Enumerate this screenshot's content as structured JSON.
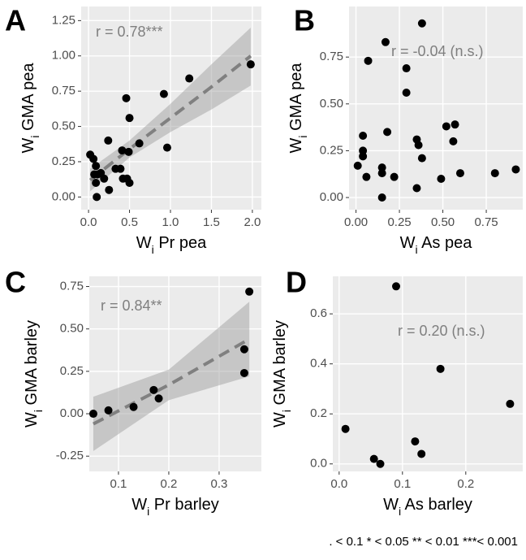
{
  "chart_data": [
    {
      "type": "scatter",
      "letter": "A",
      "annotation": "r = 0.78***",
      "color": "#000000",
      "grid": true,
      "x_label": {
        "base": "W",
        "sub": "i",
        "text": " Pr pea"
      },
      "y_label": {
        "base": "W",
        "sub": "i",
        "text": " GMA pea"
      },
      "x": [
        0.02,
        0.06,
        0.09,
        0.07,
        0.11,
        0.09,
        0.1,
        0.15,
        0.19,
        0.24,
        0.25,
        0.33,
        0.39,
        0.41,
        0.46,
        0.49,
        0.5,
        0.47,
        0.5,
        0.42,
        0.62,
        0.92,
        0.96,
        1.23,
        1.98
      ],
      "y": [
        0.3,
        0.27,
        0.22,
        0.16,
        0.16,
        0.1,
        0.0,
        0.17,
        0.13,
        0.4,
        0.05,
        0.2,
        0.2,
        0.33,
        0.7,
        0.32,
        0.56,
        0.13,
        0.1,
        0.13,
        0.38,
        0.73,
        0.35,
        0.84,
        0.94
      ],
      "fit": {
        "x": [
          0.02,
          0.5,
          1.0,
          1.5,
          1.98
        ],
        "y": [
          0.12,
          0.34,
          0.56,
          0.78,
          1.0
        ],
        "lower": [
          0.04,
          0.28,
          0.46,
          0.62,
          0.79
        ],
        "upper": [
          0.2,
          0.4,
          0.66,
          0.94,
          1.2
        ]
      },
      "xlim": [
        -0.09,
        2.11
      ],
      "ylim": [
        -0.09,
        1.35
      ],
      "xticks": [
        {
          "value": 0,
          "label": "0.0"
        },
        {
          "value": 0.5,
          "label": "0.5"
        },
        {
          "value": 1,
          "label": "1.0"
        },
        {
          "value": 1.5,
          "label": "1.5"
        },
        {
          "value": 2,
          "label": "2.0"
        }
      ],
      "yticks": [
        {
          "value": 0,
          "label": "0.00"
        },
        {
          "value": 0.25,
          "label": "0.25"
        },
        {
          "value": 0.5,
          "label": "0.50"
        },
        {
          "value": 0.75,
          "label": "0.75"
        },
        {
          "value": 1,
          "label": "1.00"
        },
        {
          "value": 1.25,
          "label": "1.25"
        }
      ]
    },
    {
      "type": "scatter",
      "letter": "B",
      "annotation": "r = -0.04 (n.s.)",
      "color": "#000000",
      "grid": true,
      "x_label": {
        "base": "W",
        "sub": "i",
        "text": " As pea"
      },
      "y_label": {
        "base": "W",
        "sub": "i",
        "text": " GMA pea"
      },
      "x": [
        0.38,
        0.17,
        0.07,
        0.29,
        0.29,
        0.52,
        0.57,
        0.56,
        0.18,
        0.04,
        0.35,
        0.36,
        0.38,
        0.04,
        0.04,
        0.01,
        0.15,
        0.15,
        0.22,
        0.06,
        0.49,
        0.6,
        0.8,
        0.92,
        0.15,
        0.35
      ],
      "y": [
        0.93,
        0.83,
        0.73,
        0.69,
        0.56,
        0.38,
        0.39,
        0.3,
        0.35,
        0.33,
        0.31,
        0.28,
        0.21,
        0.25,
        0.22,
        0.17,
        0.16,
        0.13,
        0.11,
        0.11,
        0.1,
        0.13,
        0.13,
        0.15,
        0.0,
        0.05
      ],
      "xlim": [
        -0.04,
        0.96
      ],
      "ylim": [
        -0.065,
        1.02
      ],
      "xticks": [
        {
          "value": 0,
          "label": "0.00"
        },
        {
          "value": 0.25,
          "label": "0.25"
        },
        {
          "value": 0.5,
          "label": "0.50"
        },
        {
          "value": 0.75,
          "label": "0.75"
        }
      ],
      "yticks": [
        {
          "value": 0,
          "label": "0.00"
        },
        {
          "value": 0.25,
          "label": "0.25"
        },
        {
          "value": 0.5,
          "label": "0.50"
        },
        {
          "value": 0.75,
          "label": "0.75"
        }
      ]
    },
    {
      "type": "scatter",
      "letter": "C",
      "annotation": "r = 0.84**",
      "color": "#000000",
      "grid": true,
      "x_label": {
        "base": "W",
        "sub": "i",
        "text": " Pr barley"
      },
      "y_label": {
        "base": "W",
        "sub": "i",
        "text": " GMA barley"
      },
      "x": [
        0.05,
        0.08,
        0.13,
        0.17,
        0.18,
        0.35,
        0.35,
        0.36
      ],
      "y": [
        0.0,
        0.02,
        0.04,
        0.14,
        0.09,
        0.38,
        0.24,
        0.72
      ],
      "fit": {
        "x": [
          0.05,
          0.2,
          0.36
        ],
        "y": [
          -0.06,
          0.17,
          0.44
        ],
        "lower": [
          -0.22,
          0.08,
          0.22
        ],
        "upper": [
          0.1,
          0.26,
          0.66
        ]
      },
      "xlim": [
        0.042,
        0.384
      ],
      "ylim": [
        -0.34,
        0.81
      ],
      "xticks": [
        0.1,
        0.2,
        0.3
      ],
      "yticks": [
        {
          "value": -0.25,
          "label": "-0.25"
        },
        {
          "value": 0,
          "label": "0.00"
        },
        {
          "value": 0.25,
          "label": "0.25"
        },
        {
          "value": 0.5,
          "label": "0.50"
        },
        {
          "value": 0.75,
          "label": "0.75"
        }
      ]
    },
    {
      "type": "scatter",
      "letter": "D",
      "annotation": "r = 0.20 (n.s.)",
      "color": "#000000",
      "grid": true,
      "x_label": {
        "base": "W",
        "sub": "i",
        "text": " As barley"
      },
      "y_label": {
        "base": "W",
        "sub": "i",
        "text": " GMA barley"
      },
      "x": [
        0.09,
        0.01,
        0.055,
        0.065,
        0.12,
        0.13,
        0.16,
        0.27
      ],
      "y": [
        0.71,
        0.14,
        0.02,
        0.0,
        0.09,
        0.04,
        0.38,
        0.24
      ],
      "xlim": [
        -0.01,
        0.29
      ],
      "ylim": [
        -0.03,
        0.75
      ],
      "xticks": [
        {
          "value": 0,
          "label": "0.0"
        },
        0.1,
        0.2
      ],
      "yticks": [
        {
          "value": 0,
          "label": "0.0"
        },
        0.2,
        0.4,
        0.6
      ]
    }
  ],
  "footnote": ".  < 0.1   * < 0.05   ** < 0.01   ***< 0.001"
}
